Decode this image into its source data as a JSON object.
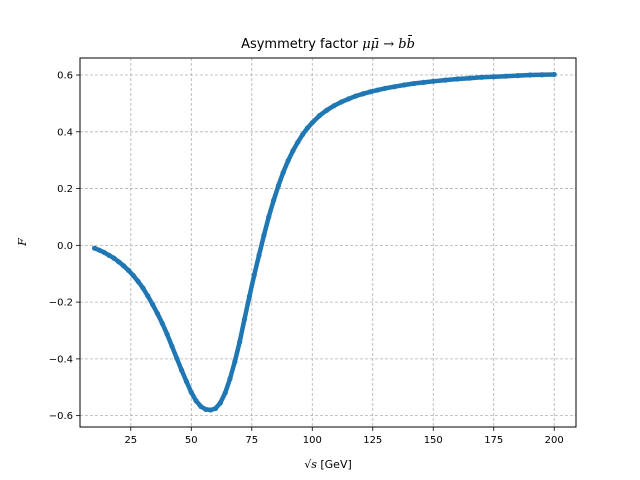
{
  "chart_data": {
    "type": "scatter",
    "title_prefix": "Asymmetry factor ",
    "title_math": "μμ̄ → bb̄",
    "xlabel_math": "√s",
    "xlabel_unit": " [GeV]",
    "ylabel_math": "F",
    "xlim": [
      4,
      209
    ],
    "ylim": [
      -0.64,
      0.66
    ],
    "x_ticks": [
      25,
      50,
      75,
      100,
      125,
      150,
      175,
      200
    ],
    "y_ticks": [
      -0.6,
      -0.4,
      -0.2,
      0.0,
      0.2,
      0.4,
      0.6
    ],
    "x_tick_labels": [
      "25",
      "50",
      "75",
      "100",
      "125",
      "150",
      "175",
      "200"
    ],
    "y_tick_labels": [
      "−0.6",
      "−0.4",
      "−0.2",
      "0.0",
      "0.2",
      "0.4",
      "0.6"
    ],
    "grid": true,
    "grid_style": "dashed",
    "series_color": "#1f77b4",
    "x": [
      10,
      12,
      14,
      16,
      18,
      20,
      22,
      24,
      26,
      28,
      30,
      32,
      34,
      36,
      38,
      40,
      42,
      44,
      46,
      48,
      50,
      52,
      54,
      56,
      58,
      60,
      62,
      64,
      66,
      68,
      70,
      72,
      74,
      76,
      78,
      80,
      82,
      84,
      86,
      88,
      90,
      92,
      94,
      96,
      98,
      100,
      103,
      106,
      109,
      112,
      115,
      118,
      121,
      124,
      127,
      130,
      134,
      138,
      142,
      146,
      150,
      155,
      160,
      165,
      170,
      175,
      180,
      185,
      190,
      195,
      200
    ],
    "y": [
      -0.01,
      -0.017,
      -0.025,
      -0.035,
      -0.045,
      -0.058,
      -0.072,
      -0.088,
      -0.106,
      -0.127,
      -0.15,
      -0.178,
      -0.208,
      -0.24,
      -0.275,
      -0.313,
      -0.355,
      -0.398,
      -0.44,
      -0.48,
      -0.518,
      -0.548,
      -0.568,
      -0.578,
      -0.58,
      -0.575,
      -0.555,
      -0.52,
      -0.47,
      -0.41,
      -0.34,
      -0.26,
      -0.18,
      -0.105,
      -0.035,
      0.035,
      0.1,
      0.158,
      0.21,
      0.257,
      0.298,
      0.333,
      0.363,
      0.39,
      0.413,
      0.432,
      0.457,
      0.476,
      0.492,
      0.505,
      0.516,
      0.526,
      0.534,
      0.541,
      0.547,
      0.553,
      0.559,
      0.565,
      0.57,
      0.574,
      0.578,
      0.582,
      0.586,
      0.589,
      0.592,
      0.594,
      0.596,
      0.598,
      0.6,
      0.601,
      0.602
    ]
  }
}
